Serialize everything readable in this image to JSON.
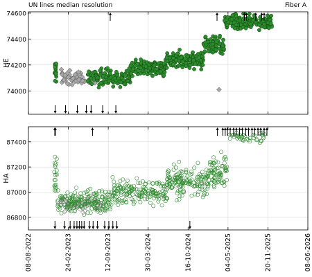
{
  "header": {
    "title": "UN lines median resolution",
    "channel": "Fiber A"
  },
  "colors": {
    "green_fill": "#2e8b2e",
    "green_edge": "#0a4a0a",
    "diamond_fill": "#a9a9a9",
    "diamond_edge": "#505050",
    "grid": "#d9d9d9",
    "arrow": "#000000"
  },
  "chart_data": [
    {
      "type": "scatter",
      "panel": "top",
      "ylabel": "HE",
      "xlabel": "",
      "ylim": [
        73820,
        74610
      ],
      "yticks": [
        74000,
        74200,
        74400,
        74600
      ],
      "xrange": [
        "2022-08-08",
        "2026-06-08"
      ],
      "grid": true,
      "series": [
        {
          "marker": "filled-circle",
          "clusters": [
            {
              "x_start": "2022-12-17",
              "x_end": "2022-12-27",
              "y_center": 74150,
              "y_spread": 160,
              "count": 22
            },
            {
              "x_start": "2023-06-01",
              "x_end": "2023-12-31",
              "y_center": 74100,
              "y_spread": 110,
              "count": 120
            },
            {
              "x_start": "2024-01-01",
              "x_end": "2024-06-30",
              "y_center": 74180,
              "y_spread": 100,
              "count": 140
            },
            {
              "x_start": "2024-07-01",
              "x_end": "2024-12-31",
              "y_center": 74240,
              "y_spread": 100,
              "count": 140
            },
            {
              "x_start": "2025-01-01",
              "x_end": "2025-04-15",
              "y_center": 74350,
              "y_spread": 110,
              "count": 90
            },
            {
              "x_start": "2025-04-16",
              "x_end": "2025-12-10",
              "y_center": 74530,
              "y_spread": 90,
              "count": 190
            }
          ]
        },
        {
          "marker": "diamond",
          "clusters": [
            {
              "x_start": "2023-01-15",
              "x_end": "2023-07-20",
              "y_center": 74100,
              "y_spread": 90,
              "count": 70
            }
          ],
          "points": [
            {
              "x": "2025-03-20",
              "y": 74010
            }
          ]
        }
      ],
      "arrows_up": [
        "2023-09-22",
        "2025-03-10",
        "2025-07-25",
        "2025-08-05",
        "2025-09-20",
        "2025-10-20",
        "2025-11-01"
      ],
      "arrows_down": [
        "2022-12-20",
        "2023-02-10",
        "2023-04-10",
        "2023-05-25",
        "2023-06-18",
        "2023-08-15",
        "2023-10-20"
      ]
    },
    {
      "type": "scatter",
      "panel": "bottom",
      "ylabel": "HA",
      "xlabel": "",
      "ylim": [
        86700,
        87520
      ],
      "yticks": [
        86800,
        87000,
        87200,
        87400
      ],
      "xrange": [
        "2022-08-08",
        "2026-06-08"
      ],
      "xticks": [
        "08-08-2022",
        "24-02-2023",
        "12-09-2023",
        "30-03-2024",
        "16-10-2024",
        "04-05-2025",
        "20-11-2025",
        "08-06-2026"
      ],
      "grid": true,
      "series": [
        {
          "marker": "open-circle",
          "clusters": [
            {
              "x_start": "2022-12-15",
              "x_end": "2022-12-28",
              "y_center": 87150,
              "y_spread": 250,
              "count": 20
            },
            {
              "x_start": "2023-01-01",
              "x_end": "2023-09-30",
              "y_center": 86930,
              "y_spread": 160,
              "count": 170
            },
            {
              "x_start": "2023-10-01",
              "x_end": "2024-06-30",
              "y_center": 87000,
              "y_spread": 180,
              "count": 170
            },
            {
              "x_start": "2024-07-01",
              "x_end": "2025-01-31",
              "y_center": 87080,
              "y_spread": 190,
              "count": 160
            },
            {
              "x_start": "2025-02-01",
              "x_end": "2025-04-30",
              "y_center": 87180,
              "y_spread": 200,
              "count": 70
            },
            {
              "x_start": "2025-05-01",
              "x_end": "2025-12-01",
              "y_center": 87440,
              "y_spread": 70,
              "count": 40
            }
          ]
        },
        {
          "marker": "open-diamond",
          "clusters": [
            {
              "x_start": "2023-01-10",
              "x_end": "2023-08-20",
              "y_center": 86900,
              "y_spread": 110,
              "count": 80
            }
          ]
        }
      ],
      "arrows_up": [
        "2022-12-18",
        "2022-12-21",
        "2023-06-25",
        "2025-03-12",
        "2025-04-08",
        "2025-04-20",
        "2025-05-01",
        "2025-05-15",
        "2025-06-01",
        "2025-06-15",
        "2025-07-01",
        "2025-07-15",
        "2025-08-01",
        "2025-08-15",
        "2025-09-01",
        "2025-09-15",
        "2025-10-01",
        "2025-10-15",
        "2025-11-01",
        "2025-11-15"
      ],
      "arrows_down": [
        "2022-12-19",
        "2023-02-05",
        "2023-03-05",
        "2023-03-25",
        "2023-04-08",
        "2023-04-20",
        "2023-05-02",
        "2023-05-14",
        "2023-06-10",
        "2023-06-28",
        "2023-07-20",
        "2023-08-25",
        "2023-09-15",
        "2023-10-05",
        "2023-10-25",
        "2024-10-25"
      ]
    }
  ]
}
